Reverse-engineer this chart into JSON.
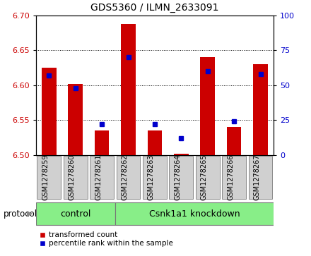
{
  "title": "GDS5360 / ILMN_2633091",
  "samples": [
    "GSM1278259",
    "GSM1278260",
    "GSM1278261",
    "GSM1278262",
    "GSM1278263",
    "GSM1278264",
    "GSM1278265",
    "GSM1278266",
    "GSM1278267"
  ],
  "red_values": [
    6.625,
    6.602,
    6.535,
    6.688,
    6.535,
    6.502,
    6.64,
    6.54,
    6.63
  ],
  "blue_percentiles": [
    57,
    48,
    22,
    70,
    22,
    12,
    60,
    24,
    58
  ],
  "ylim_left": [
    6.5,
    6.7
  ],
  "ylim_right": [
    0,
    100
  ],
  "yticks_left": [
    6.5,
    6.55,
    6.6,
    6.65,
    6.7
  ],
  "yticks_right": [
    0,
    25,
    50,
    75,
    100
  ],
  "bar_bottom": 6.5,
  "red_color": "#cc0000",
  "blue_color": "#0000cc",
  "ctrl_count": 3,
  "kd_count": 6,
  "control_label": "control",
  "knockdown_label": "Csnk1a1 knockdown",
  "group_color": "#88ee88",
  "protocol_label": "protocol",
  "legend_red": "transformed count",
  "legend_blue": "percentile rank within the sample",
  "sample_box_color": "#d0d0d0",
  "sample_box_edge": "#888888"
}
